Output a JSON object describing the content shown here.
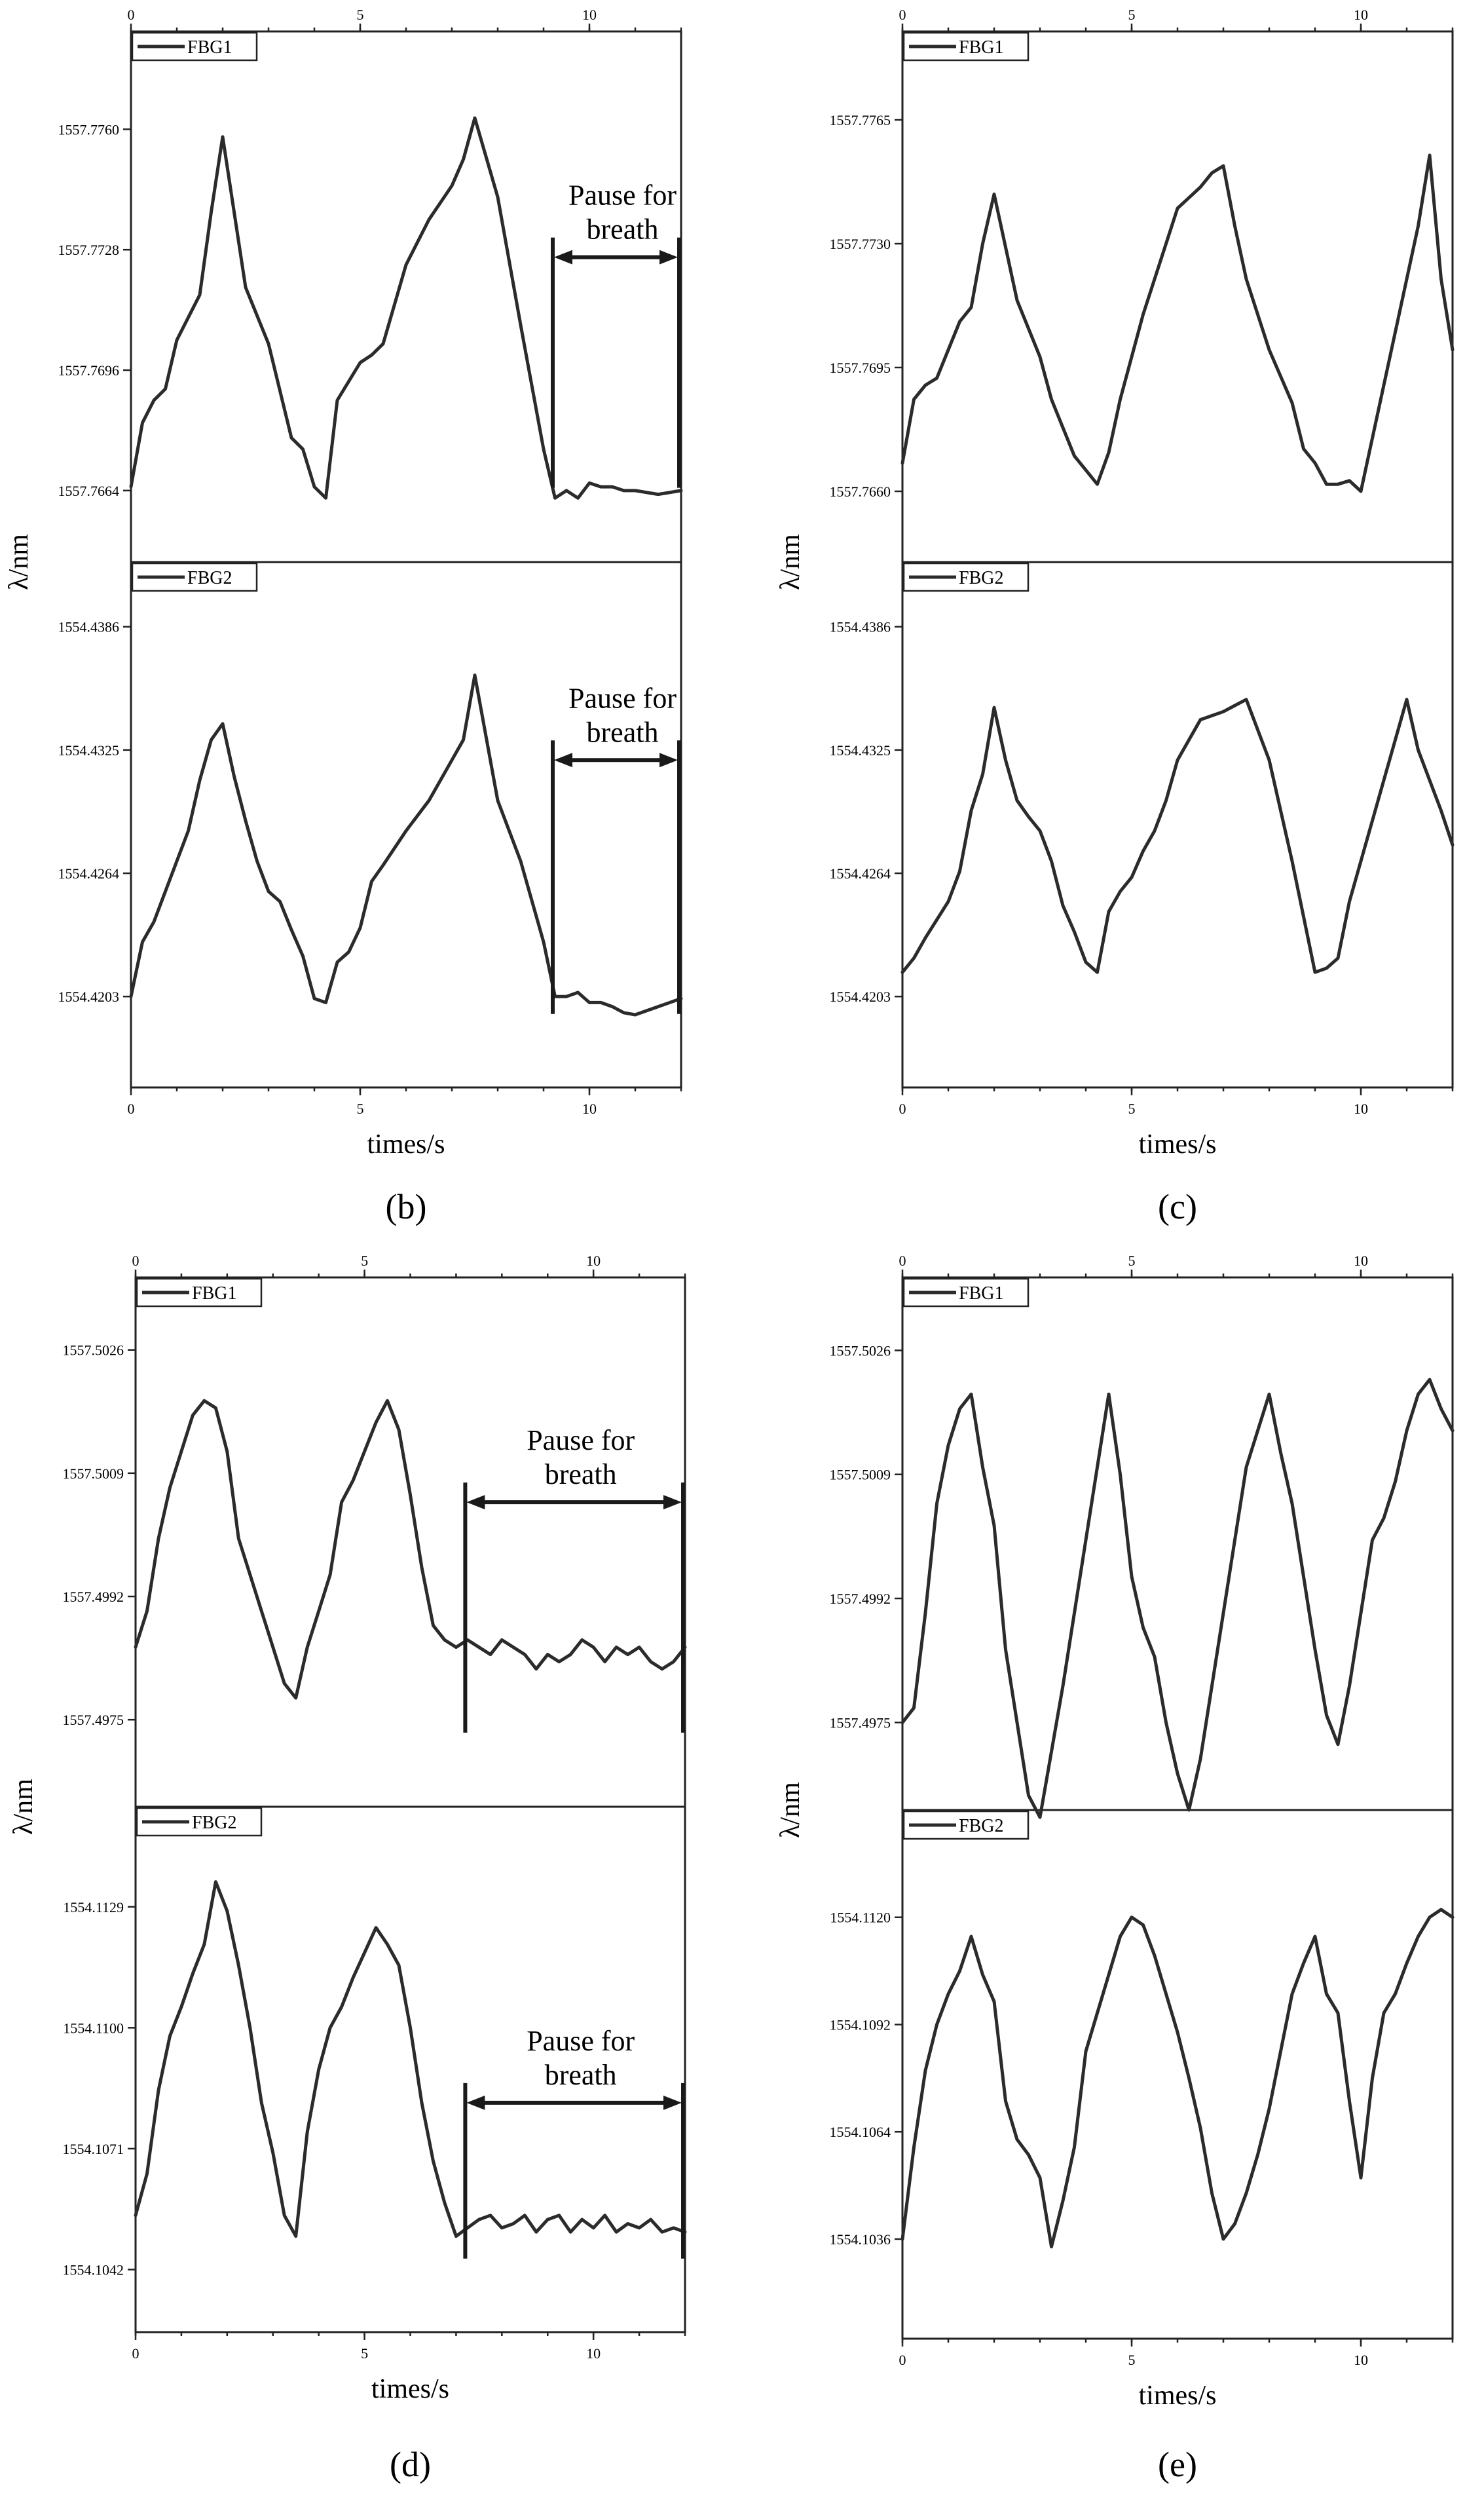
{
  "figure": {
    "panel_labels": {
      "b": "(b)",
      "c": "(c)",
      "d": "(d)",
      "e": "(e)"
    }
  },
  "chart_data": [
    {
      "panel": "b",
      "type": "line",
      "xlabel": "times/s",
      "ylabel": "λ/nm",
      "xlim": [
        0,
        12
      ],
      "xticks": [
        0,
        5,
        10
      ],
      "xtick_labels": [
        "0",
        "5",
        "10"
      ],
      "annotation_text": [
        "Pause for",
        "breath"
      ],
      "subplots": [
        {
          "legend": "FBG1",
          "ylim": [
            1557.7645,
            1557.7786
          ],
          "yticks": [
            1557.7664,
            1557.7696,
            1557.7728,
            1557.776
          ],
          "ytick_labels": [
            "1557.7664",
            "1557.7696",
            "1557.7728",
            "1557.7760"
          ],
          "annotation_range": [
            9.2,
            12
          ],
          "annotation_y": 1557.7726,
          "x": [
            0,
            0.25,
            0.5,
            0.75,
            1.0,
            1.5,
            1.75,
            2.0,
            2.5,
            3.0,
            3.5,
            3.75,
            4.0,
            4.25,
            4.5,
            5.0,
            5.25,
            5.5,
            6.0,
            6.5,
            7.0,
            7.25,
            7.5,
            8.0,
            8.5,
            9.0,
            9.25,
            9.5,
            9.75,
            10.0,
            10.25,
            10.5,
            10.75,
            11.0,
            11.5,
            12.0
          ],
          "values": [
            1557.7665,
            1557.7682,
            1557.7688,
            1557.7691,
            1557.7704,
            1557.7716,
            1557.7738,
            1557.7758,
            1557.7718,
            1557.7703,
            1557.7678,
            1557.7675,
            1557.7665,
            1557.7662,
            1557.7688,
            1557.7698,
            1557.77,
            1557.7703,
            1557.7724,
            1557.7736,
            1557.7745,
            1557.7752,
            1557.7763,
            1557.7742,
            1557.7708,
            1557.7675,
            1557.7662,
            1557.7664,
            1557.7662,
            1557.7666,
            1557.7665,
            1557.7665,
            1557.7664,
            1557.7664,
            1557.7663,
            1557.7664
          ]
        },
        {
          "legend": "FBG2",
          "ylim": [
            1554.4158,
            1554.4418
          ],
          "yticks": [
            1554.4203,
            1554.4264,
            1554.4325,
            1554.4386
          ],
          "ytick_labels": [
            "1554.4203",
            "1554.4264",
            "1554.4325",
            "1554.4386"
          ],
          "annotation_range": [
            9.2,
            12
          ],
          "annotation_y": 1554.432,
          "x": [
            0,
            0.25,
            0.5,
            1.0,
            1.25,
            1.5,
            1.75,
            2.0,
            2.25,
            2.5,
            2.75,
            3.0,
            3.25,
            3.5,
            3.75,
            4.0,
            4.25,
            4.5,
            4.75,
            5.0,
            5.25,
            5.5,
            6.0,
            6.5,
            7.0,
            7.25,
            7.5,
            8.0,
            8.5,
            9.0,
            9.25,
            9.5,
            9.75,
            10.0,
            10.25,
            10.5,
            10.75,
            11.0,
            11.5,
            12.0
          ],
          "values": [
            1554.4203,
            1554.423,
            1554.424,
            1554.427,
            1554.4285,
            1554.431,
            1554.433,
            1554.4338,
            1554.4312,
            1554.429,
            1554.427,
            1554.4255,
            1554.425,
            1554.4236,
            1554.4223,
            1554.4202,
            1554.42,
            1554.422,
            1554.4225,
            1554.4237,
            1554.426,
            1554.4268,
            1554.4285,
            1554.43,
            1554.432,
            1554.433,
            1554.4362,
            1554.43,
            1554.427,
            1554.423,
            1554.4203,
            1554.4203,
            1554.4205,
            1554.42,
            1554.42,
            1554.4198,
            1554.4195,
            1554.4194,
            1554.4198,
            1554.4202
          ]
        }
      ]
    },
    {
      "panel": "c",
      "type": "line",
      "xlabel": "times/s",
      "ylabel": "λ/nm",
      "xlim": [
        0,
        12
      ],
      "xticks": [
        0,
        5,
        10
      ],
      "xtick_labels": [
        "0",
        "5",
        "10"
      ],
      "subplots": [
        {
          "legend": "FBG1",
          "ylim": [
            1557.764,
            1557.779
          ],
          "yticks": [
            1557.766,
            1557.7695,
            1557.773,
            1557.7765
          ],
          "ytick_labels": [
            "1557.7660",
            "1557.7695",
            "1557.7730",
            "1557.7765"
          ],
          "x": [
            0,
            0.25,
            0.5,
            0.75,
            1.0,
            1.25,
            1.5,
            1.75,
            2.0,
            2.5,
            3.0,
            3.25,
            3.5,
            3.75,
            4.0,
            4.25,
            4.5,
            4.75,
            5.0,
            5.25,
            5.5,
            5.75,
            6.0,
            6.25,
            6.5,
            6.75,
            7.0,
            7.25,
            7.5,
            8.0,
            8.5,
            8.75,
            9.0,
            9.25,
            9.5,
            9.75,
            10.0,
            10.5,
            11.0,
            11.25,
            11.5,
            11.75,
            12.0
          ],
          "values": [
            1557.7668,
            1557.7686,
            1557.769,
            1557.7692,
            1557.77,
            1557.7708,
            1557.7712,
            1557.773,
            1557.7744,
            1557.7714,
            1557.7698,
            1557.7686,
            1557.7678,
            1557.767,
            1557.7666,
            1557.7662,
            1557.7671,
            1557.7686,
            1557.7698,
            1557.771,
            1557.772,
            1557.773,
            1557.774,
            1557.7743,
            1557.7746,
            1557.775,
            1557.7752,
            1557.7735,
            1557.772,
            1557.77,
            1557.7685,
            1557.7672,
            1557.7668,
            1557.7662,
            1557.7662,
            1557.7663,
            1557.766,
            1557.769,
            1557.772,
            1557.7735,
            1557.7755,
            1557.772,
            1557.77
          ]
        },
        {
          "legend": "FBG2",
          "ylim": [
            1554.4158,
            1554.4418
          ],
          "yticks": [
            1554.4203,
            1554.4264,
            1554.4325,
            1554.4386
          ],
          "ytick_labels": [
            "1554.4203",
            "1554.4264",
            "1554.4325",
            "1554.4386"
          ],
          "x": [
            0,
            0.25,
            0.5,
            1.0,
            1.25,
            1.5,
            1.75,
            2.0,
            2.25,
            2.5,
            2.75,
            3.0,
            3.25,
            3.5,
            3.75,
            4.0,
            4.25,
            4.5,
            4.75,
            5.0,
            5.25,
            5.5,
            5.75,
            6.0,
            6.5,
            7.0,
            7.25,
            7.5,
            8.0,
            8.5,
            9.0,
            9.25,
            9.5,
            9.75,
            10.0,
            10.25,
            10.5,
            11.0,
            11.25,
            11.5,
            11.75,
            12.0
          ],
          "values": [
            1554.4215,
            1554.4222,
            1554.4232,
            1554.425,
            1554.4265,
            1554.4295,
            1554.4313,
            1554.4346,
            1554.432,
            1554.43,
            1554.4292,
            1554.4285,
            1554.427,
            1554.4248,
            1554.4235,
            1554.422,
            1554.4215,
            1554.4245,
            1554.4255,
            1554.4262,
            1554.4275,
            1554.4285,
            1554.43,
            1554.432,
            1554.434,
            1554.4344,
            1554.4347,
            1554.435,
            1554.432,
            1554.427,
            1554.4215,
            1554.4217,
            1554.4222,
            1554.425,
            1554.427,
            1554.429,
            1554.431,
            1554.435,
            1554.4325,
            1554.431,
            1554.4295,
            1554.4278
          ]
        }
      ]
    },
    {
      "panel": "d",
      "type": "line",
      "xlabel": "times/s",
      "ylabel": "λ/nm",
      "xlim": [
        0,
        12
      ],
      "xticks": [
        0,
        5,
        10
      ],
      "xtick_labels": [
        "0",
        "5",
        "10"
      ],
      "annotation_text": [
        "Pause for",
        "breath"
      ],
      "subplots": [
        {
          "legend": "FBG1",
          "ylim": [
            1557.4963,
            1557.5036
          ],
          "yticks": [
            1557.4975,
            1557.4992,
            1557.5009,
            1557.5026
          ],
          "ytick_labels": [
            "1557.4975",
            "1557.4992",
            "1557.5009",
            "1557.5026"
          ],
          "annotation_range": [
            7.2,
            12
          ],
          "annotation_y": 1557.5005,
          "x": [
            0,
            0.25,
            0.5,
            0.75,
            1.0,
            1.25,
            1.5,
            1.75,
            2.0,
            2.25,
            2.5,
            2.75,
            3.0,
            3.25,
            3.5,
            3.75,
            4.0,
            4.25,
            4.5,
            4.75,
            5.0,
            5.25,
            5.5,
            5.75,
            6.0,
            6.25,
            6.5,
            6.75,
            7.0,
            7.25,
            7.5,
            7.75,
            8.0,
            8.25,
            8.5,
            8.75,
            9.0,
            9.25,
            9.5,
            9.75,
            10.0,
            10.25,
            10.5,
            10.75,
            11.0,
            11.25,
            11.5,
            11.75,
            12.0
          ],
          "values": [
            1557.4985,
            1557.499,
            1557.5,
            1557.5007,
            1557.5012,
            1557.5017,
            1557.5019,
            1557.5018,
            1557.5012,
            1557.5,
            1557.4995,
            1557.499,
            1557.4985,
            1557.498,
            1557.4978,
            1557.4985,
            1557.499,
            1557.4995,
            1557.5005,
            1557.5008,
            1557.5012,
            1557.5016,
            1557.5019,
            1557.5015,
            1557.5006,
            1557.4996,
            1557.4988,
            1557.4986,
            1557.4985,
            1557.4986,
            1557.4985,
            1557.4984,
            1557.4986,
            1557.4985,
            1557.4984,
            1557.4982,
            1557.4984,
            1557.4983,
            1557.4984,
            1557.4986,
            1557.4985,
            1557.4983,
            1557.4985,
            1557.4984,
            1557.4985,
            1557.4983,
            1557.4982,
            1557.4983,
            1557.4985
          ]
        },
        {
          "legend": "FBG2",
          "ylim": [
            1554.1027,
            1554.1153
          ],
          "yticks": [
            1554.1042,
            1554.1071,
            1554.11,
            1554.1129
          ],
          "ytick_labels": [
            "1554.1042",
            "1554.1071",
            "1554.1100",
            "1554.1129"
          ],
          "annotation_range": [
            7.2,
            12
          ],
          "annotation_y": 1554.1082,
          "x": [
            0,
            0.25,
            0.5,
            0.75,
            1.0,
            1.25,
            1.5,
            1.75,
            2.0,
            2.25,
            2.5,
            2.75,
            3.0,
            3.25,
            3.5,
            3.75,
            4.0,
            4.25,
            4.5,
            4.75,
            5.0,
            5.25,
            5.5,
            5.75,
            6.0,
            6.25,
            6.5,
            6.75,
            7.0,
            7.25,
            7.5,
            7.75,
            8.0,
            8.25,
            8.5,
            8.75,
            9.0,
            9.25,
            9.5,
            9.75,
            10.0,
            10.25,
            10.5,
            10.75,
            11.0,
            11.25,
            11.5,
            11.75,
            12.0
          ],
          "values": [
            1554.1055,
            1554.1065,
            1554.1085,
            1554.1098,
            1554.1105,
            1554.1113,
            1554.112,
            1554.1135,
            1554.1128,
            1554.1115,
            1554.11,
            1554.1082,
            1554.107,
            1554.1055,
            1554.105,
            1554.1075,
            1554.109,
            1554.11,
            1554.1105,
            1554.1112,
            1554.1118,
            1554.1124,
            1554.112,
            1554.1115,
            1554.11,
            1554.1082,
            1554.1068,
            1554.1058,
            1554.105,
            1554.1052,
            1554.1054,
            1554.1055,
            1554.1052,
            1554.1053,
            1554.1055,
            1554.1051,
            1554.1054,
            1554.1055,
            1554.1051,
            1554.1054,
            1554.1052,
            1554.1055,
            1554.1051,
            1554.1053,
            1554.1052,
            1554.1054,
            1554.1051,
            1554.1052,
            1554.1051
          ]
        }
      ]
    },
    {
      "panel": "e",
      "type": "line",
      "xlabel": "times/s",
      "ylabel": "λ/nm",
      "xlim": [
        0,
        12
      ],
      "xticks": [
        0,
        5,
        10
      ],
      "xtick_labels": [
        "0",
        "5",
        "10"
      ],
      "subplots": [
        {
          "legend": "FBG1",
          "ylim": [
            1557.4963,
            1557.5036
          ],
          "yticks": [
            1557.4975,
            1557.4992,
            1557.5009,
            1557.5026
          ],
          "ytick_labels": [
            "1557.4975",
            "1557.4992",
            "1557.5009",
            "1557.5026"
          ],
          "x": [
            0,
            0.25,
            0.5,
            0.75,
            1.0,
            1.25,
            1.5,
            1.75,
            2.0,
            2.25,
            2.5,
            2.75,
            3.0,
            3.25,
            3.5,
            3.75,
            4.0,
            4.25,
            4.5,
            4.75,
            5.0,
            5.25,
            5.5,
            5.75,
            6.0,
            6.25,
            6.5,
            6.75,
            7.0,
            7.25,
            7.5,
            7.75,
            8.0,
            8.25,
            8.5,
            8.75,
            9.0,
            9.25,
            9.5,
            9.75,
            10.0,
            10.25,
            10.5,
            10.75,
            11.0,
            11.25,
            11.5,
            11.75,
            12.0
          ],
          "values": [
            1557.4975,
            1557.4977,
            1557.499,
            1557.5005,
            1557.5013,
            1557.5018,
            1557.502,
            1557.501,
            1557.5002,
            1557.4985,
            1557.4975,
            1557.4965,
            1557.4962,
            1557.4971,
            1557.498,
            1557.499,
            1557.5,
            1557.501,
            1557.502,
            1557.5009,
            1557.4995,
            1557.4988,
            1557.4984,
            1557.4975,
            1557.4968,
            1557.4963,
            1557.497,
            1557.498,
            1557.499,
            1557.5,
            1557.501,
            1557.5015,
            1557.502,
            1557.5012,
            1557.5005,
            1557.4995,
            1557.4985,
            1557.4976,
            1557.4972,
            1557.498,
            1557.499,
            1557.5,
            1557.5003,
            1557.5008,
            1557.5015,
            1557.502,
            1557.5022,
            1557.5018,
            1557.5015
          ]
        },
        {
          "legend": "FBG2",
          "ylim": [
            1554.101,
            1554.1148
          ],
          "yticks": [
            1554.1036,
            1554.1064,
            1554.1092,
            1554.112
          ],
          "ytick_labels": [
            "1554.1036",
            "1554.1064",
            "1554.1092",
            "1554.1120"
          ],
          "x": [
            0,
            0.25,
            0.5,
            0.75,
            1.0,
            1.25,
            1.5,
            1.75,
            2.0,
            2.25,
            2.5,
            2.75,
            3.0,
            3.25,
            3.5,
            3.75,
            4.0,
            4.25,
            4.5,
            4.75,
            5.0,
            5.25,
            5.5,
            5.75,
            6.0,
            6.25,
            6.5,
            6.75,
            7.0,
            7.25,
            7.5,
            7.75,
            8.0,
            8.25,
            8.5,
            8.75,
            9.0,
            9.25,
            9.5,
            9.75,
            10.0,
            10.25,
            10.5,
            10.75,
            11.0,
            11.25,
            11.5,
            11.75,
            12.0
          ],
          "values": [
            1554.1036,
            1554.106,
            1554.108,
            1554.1092,
            1554.11,
            1554.1106,
            1554.1115,
            1554.1105,
            1554.1098,
            1554.1072,
            1554.1062,
            1554.1058,
            1554.1052,
            1554.1034,
            1554.1046,
            1554.106,
            1554.1085,
            1554.1095,
            1554.1105,
            1554.1115,
            1554.112,
            1554.1118,
            1554.111,
            1554.11,
            1554.109,
            1554.1078,
            1554.1065,
            1554.1048,
            1554.1036,
            1554.104,
            1554.1048,
            1554.1058,
            1554.107,
            1554.1085,
            1554.11,
            1554.1108,
            1554.1115,
            1554.11,
            1554.1095,
            1554.1072,
            1554.1052,
            1554.1078,
            1554.1095,
            1554.11,
            1554.1108,
            1554.1115,
            1554.112,
            1554.1122,
            1554.112
          ]
        }
      ]
    }
  ]
}
